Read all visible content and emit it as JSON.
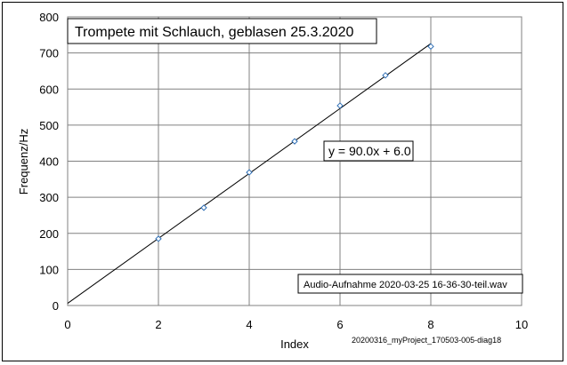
{
  "chart_data": {
    "type": "scatter",
    "title": "Trompete mit Schlauch, geblasen  25.3.2020",
    "xlabel": "Index",
    "ylabel": "Frequenz/Hz",
    "xlim": [
      0,
      10
    ],
    "ylim": [
      0,
      800
    ],
    "x_ticks": [
      "0",
      "2",
      "4",
      "6",
      "8",
      "10"
    ],
    "y_ticks": [
      "0",
      "100",
      "200",
      "300",
      "400",
      "500",
      "600",
      "700",
      "800"
    ],
    "grid": true,
    "series": [
      {
        "x": [
          2,
          3,
          4,
          5,
          6,
          7,
          8
        ],
        "y": [
          185,
          271,
          369,
          455,
          554,
          638,
          718
        ],
        "color": "#2e6eb5"
      }
    ],
    "trendline": {
      "slope": 90.0,
      "intercept": 6.0,
      "x_range": [
        0,
        8
      ],
      "equation": "y = 90.0x + 6.0",
      "color": "#000000"
    },
    "annotations": {
      "source_file": "Audio-Aufnahme 2020-03-25 16-36-30-teil.wav",
      "diagram_id": "20200316_myProject_170503-005-diag18"
    }
  }
}
